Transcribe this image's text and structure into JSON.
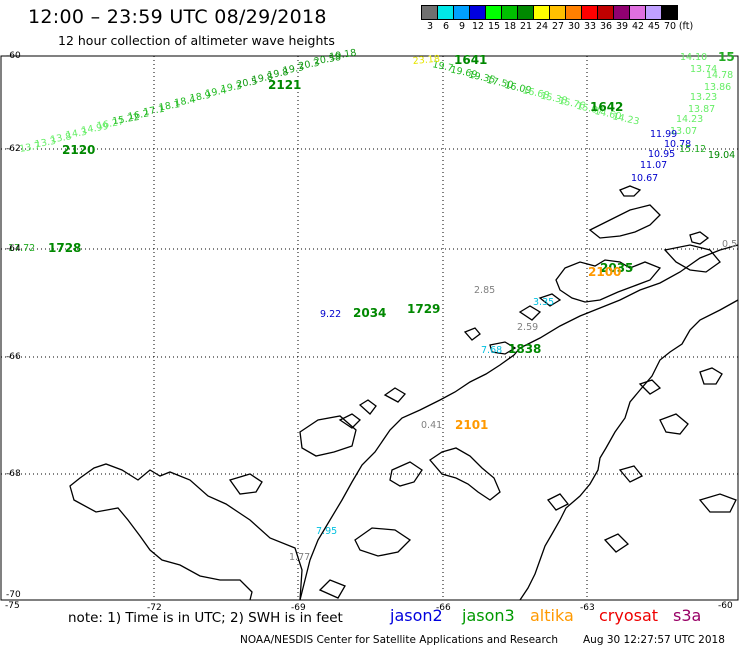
{
  "header": {
    "title": "12:00 – 23:59 UTC 08/29/2018",
    "subtitle": "12 hour collection of altimeter wave heights"
  },
  "color_scale": {
    "unit": "(ft)",
    "colors": [
      "#707070",
      "#00e8e8",
      "#00a0ff",
      "#0000e0",
      "#00ff00",
      "#00c000",
      "#008800",
      "#ffff00",
      "#ffc000",
      "#ff8000",
      "#ff0000",
      "#c00000",
      "#900070",
      "#e070e0",
      "#c0a0ff",
      "#000000"
    ],
    "labels": [
      "3",
      "6",
      "9",
      "12",
      "15",
      "18",
      "21",
      "24",
      "27",
      "30",
      "33",
      "36",
      "39",
      "42",
      "45",
      "70"
    ]
  },
  "axes": {
    "lat_labels": [
      "-60",
      "-62",
      "-64",
      "-66",
      "-68",
      "-70"
    ],
    "lon_labels": [
      "-75",
      "-72",
      "-69",
      "-66",
      "-63",
      "-60"
    ]
  },
  "tracks": [
    {
      "id": "2120",
      "satellite": "jason3",
      "color": "#22aa22",
      "values": [
        "13.7",
        "13.3",
        "13.8",
        "14.3",
        "14.99",
        "16.27",
        "15.22",
        "16.2",
        "17.1",
        "18.1",
        "18.4",
        "18.9",
        "19.4",
        "19.3",
        "20.5",
        "19.8",
        "19.8",
        "19.3",
        "20.3",
        "20.58",
        "19.18"
      ],
      "pass_labels": [
        "2120",
        "2121"
      ]
    },
    {
      "id": "1641",
      "satellite": "jason3",
      "color": "#22aa22",
      "values": [
        "19.7",
        "19.69",
        "19.35",
        "17.50",
        "16.09",
        "16.68",
        "15.38",
        "15.76",
        "15.07",
        "14.60",
        "14.23"
      ],
      "pass_labels": [
        "1641",
        "1642"
      ]
    }
  ],
  "text_marks": [
    {
      "text": "23.18",
      "color": "#e6e600"
    },
    {
      "text": "14.10",
      "color": "#66ee66"
    },
    {
      "text": "15",
      "color": "#22aa22"
    },
    {
      "text": "13.74",
      "color": "#66ee66"
    },
    {
      "text": "14.78",
      "color": "#66ee66"
    },
    {
      "text": "13.86",
      "color": "#66ee66"
    },
    {
      "text": "13.23",
      "color": "#66ee66"
    },
    {
      "text": "13.87",
      "color": "#66ee66"
    },
    {
      "text": "14.23",
      "color": "#66ee66"
    },
    {
      "text": "13.07",
      "color": "#66ee66"
    },
    {
      "text": "11.99",
      "color": "#0000cc"
    },
    {
      "text": "10.78",
      "color": "#0000cc"
    },
    {
      "text": "10.95",
      "color": "#0000cc"
    },
    {
      "text": "11.07",
      "color": "#0000cc"
    },
    {
      "text": "10.67",
      "color": "#0000cc"
    },
    {
      "text": "15.12",
      "color": "#22aa22"
    },
    {
      "text": "19.04",
      "color": "#008800"
    },
    {
      "text": "17.72",
      "color": "#22aa22"
    },
    {
      "text": "1728",
      "color": "#008800"
    },
    {
      "text": "9.22",
      "color": "#0000cc"
    },
    {
      "text": "2034",
      "color": "#008800"
    },
    {
      "text": "1729",
      "color": "#008800"
    },
    {
      "text": "2.85",
      "color": "#808080"
    },
    {
      "text": "3.35",
      "color": "#00c0e0"
    },
    {
      "text": "2.59",
      "color": "#808080"
    },
    {
      "text": "7.68",
      "color": "#00c0e0"
    },
    {
      "text": "1838",
      "color": "#008800"
    },
    {
      "text": "2035",
      "color": "#008800"
    },
    {
      "text": "2100",
      "color": "#ff9900"
    },
    {
      "text": "0.5",
      "color": "#808080"
    },
    {
      "text": "0.41",
      "color": "#808080"
    },
    {
      "text": "2101",
      "color": "#ff9900"
    },
    {
      "text": "7.95",
      "color": "#00c0e0"
    },
    {
      "text": "1.77",
      "color": "#808080"
    }
  ],
  "footer": {
    "note": "note:  1) Time is in UTC;  2) SWH is in feet",
    "legend": [
      {
        "label": "jason2",
        "color": "#0000dd"
      },
      {
        "label": "jason3",
        "color": "#009900"
      },
      {
        "label": "altika",
        "color": "#ff9900"
      },
      {
        "label": "cryosat",
        "color": "#ee0000"
      },
      {
        "label": "s3a",
        "color": "#990066"
      }
    ],
    "credit": "NOAA/NESDIS Center for Satellite Applications and Research",
    "timestamp": "Aug 30 12:27:57 UTC 2018"
  }
}
